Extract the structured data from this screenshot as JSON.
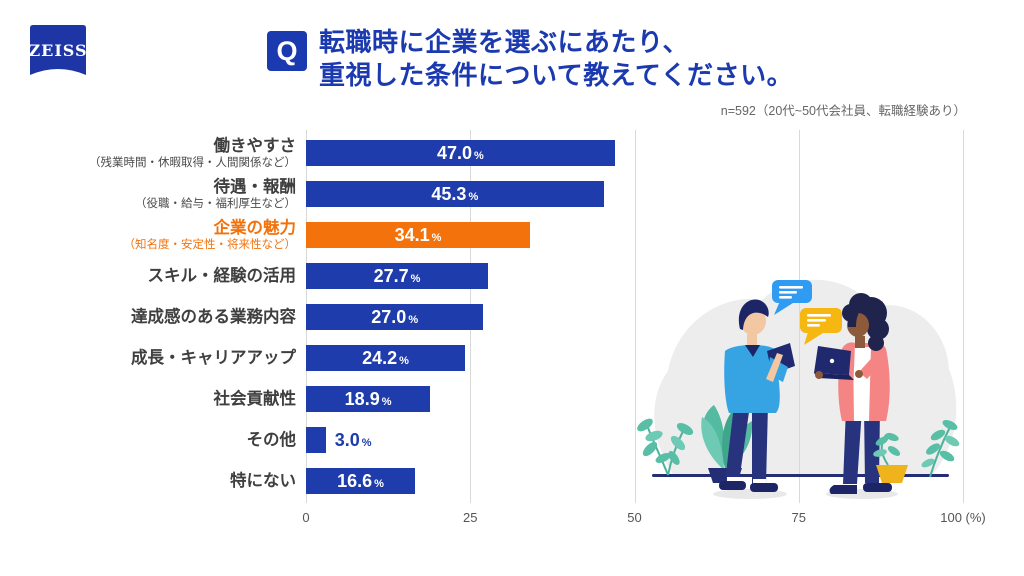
{
  "brand": {
    "logo_text": "ZEISS"
  },
  "question": {
    "badge": "Q",
    "title_line1": "転職時に企業を選ぶにあたり、",
    "title_line2": "重視した条件について教えてください。",
    "note": "n=592（20代~50代会社員、転職経験あり）"
  },
  "chart_data": {
    "type": "bar",
    "orientation": "horizontal",
    "unit": "%",
    "xlim": [
      0,
      100
    ],
    "grid": true,
    "x_ticks": [
      {
        "value": 0,
        "label": "0"
      },
      {
        "value": 25,
        "label": "25"
      },
      {
        "value": 50,
        "label": "50"
      },
      {
        "value": 75,
        "label": "75"
      },
      {
        "value": 100,
        "label": "100 (%)"
      }
    ],
    "rows": [
      {
        "label": "働きやすさ",
        "sub_label": "（残業時間・休暇取得・人間関係など）",
        "value": 47.0,
        "display": "47.0",
        "highlight": false
      },
      {
        "label": "待遇・報酬",
        "sub_label": "（役職・給与・福利厚生など）",
        "value": 45.3,
        "display": "45.3",
        "highlight": false
      },
      {
        "label": "企業の魅力",
        "sub_label": "（知名度・安定性・将来性など）",
        "value": 34.1,
        "display": "34.1",
        "highlight": true
      },
      {
        "label": "スキル・経験の活用",
        "sub_label": "",
        "value": 27.7,
        "display": "27.7",
        "highlight": false
      },
      {
        "label": "達成感のある業務内容",
        "sub_label": "",
        "value": 27.0,
        "display": "27.0",
        "highlight": false
      },
      {
        "label": "成長・キャリアアップ",
        "sub_label": "",
        "value": 24.2,
        "display": "24.2",
        "highlight": false
      },
      {
        "label": "社会貢献性",
        "sub_label": "",
        "value": 18.9,
        "display": "18.9",
        "highlight": false
      },
      {
        "label": "その他",
        "sub_label": "",
        "value": 3.0,
        "display": "3.0",
        "highlight": false
      },
      {
        "label": "特にない",
        "sub_label": "",
        "value": 16.6,
        "display": "16.6",
        "highlight": false
      }
    ],
    "colors": {
      "bar": "#1e3cab",
      "highlight": "#f3720c",
      "grid_line": "#d9d9d9",
      "value_text": "#ffffff",
      "label_text": "#3f3f3f",
      "axis_text": "#555555",
      "title_blue": "#1b3ab0"
    }
  },
  "illustration": {
    "name": "two-people-talking",
    "colors": {
      "blob_gray": "#ededed",
      "ground_navy": "#232e75",
      "bubble_blue": "#2f9bf2",
      "bubble_yellow": "#f6b712",
      "shirt_blue": "#36a4e3",
      "cardigan_pink": "#f58585",
      "navy": "#28337d",
      "skin_light": "#f2c7a1",
      "skin_dark": "#8d5b3c",
      "plant_teal": "#58bfa6",
      "pot_yellow": "#efb31c"
    }
  }
}
